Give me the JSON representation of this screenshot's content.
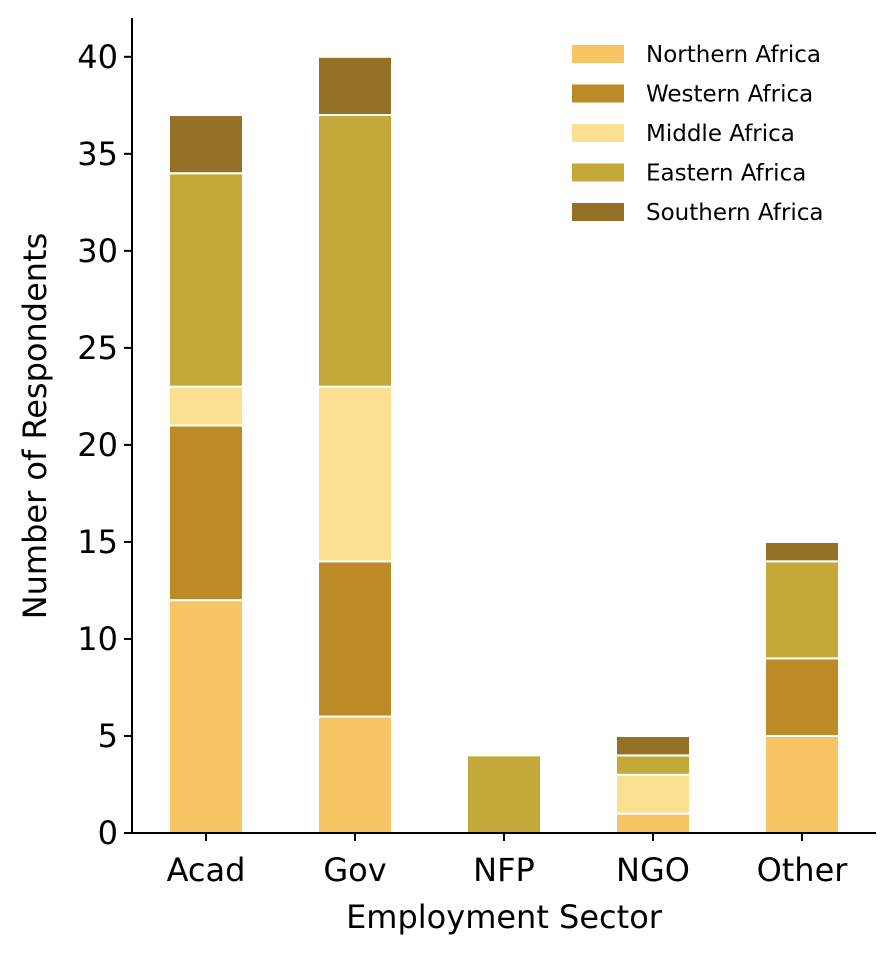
{
  "chart_data": {
    "type": "bar",
    "stacked": true,
    "categories": [
      "Acad",
      "Gov",
      "NFP",
      "NGO",
      "Other"
    ],
    "series": [
      {
        "name": "Northern Africa",
        "color": "#F8C564",
        "values": [
          12,
          6,
          0,
          1,
          5
        ]
      },
      {
        "name": "Western Africa",
        "color": "#BC8B28",
        "values": [
          9,
          8,
          0,
          0,
          4
        ]
      },
      {
        "name": "Middle Africa",
        "color": "#FBE092",
        "values": [
          2,
          9,
          0,
          2,
          0
        ]
      },
      {
        "name": "Eastern Africa",
        "color": "#C4A83A",
        "values": [
          11,
          14,
          4,
          1,
          5
        ]
      },
      {
        "name": "Southern Africa",
        "color": "#957128",
        "values": [
          3,
          3,
          0,
          1,
          1
        ]
      }
    ],
    "xlabel": "Employment Sector",
    "ylabel": "Number of Respondents",
    "ylim": [
      0,
      42
    ],
    "yticks": [
      0,
      5,
      10,
      15,
      20,
      25,
      30,
      35,
      40
    ],
    "grid": false,
    "legend_position": "top-right"
  }
}
